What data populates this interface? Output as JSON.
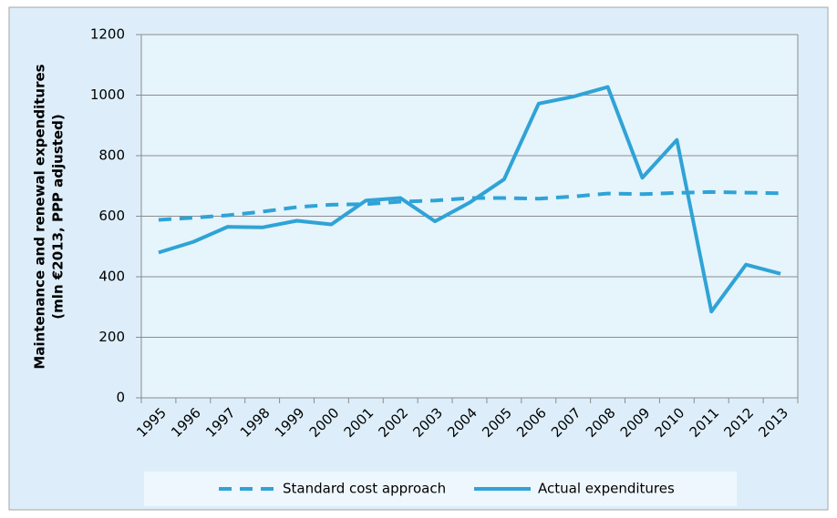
{
  "chart_data": {
    "type": "line",
    "y_label": [
      "Maintenance and renewal expenditures",
      "(mln €2013, PPP adjusted)"
    ],
    "categories": [
      "1995",
      "1996",
      "1997",
      "1998",
      "1999",
      "2000",
      "2001",
      "2002",
      "2003",
      "2004",
      "2005",
      "2006",
      "2007",
      "2008",
      "2009",
      "2010",
      "2011",
      "2012",
      "2013"
    ],
    "series": [
      {
        "name": "Standard cost approach",
        "color": "#2fa3d6",
        "dashed": true,
        "values": [
          588,
          595,
          603,
          615,
          630,
          638,
          640,
          648,
          652,
          660,
          660,
          658,
          665,
          675,
          673,
          677,
          680,
          678,
          676
        ]
      },
      {
        "name": "Actual expenditures",
        "color": "#2fa3d6",
        "dashed": false,
        "values": [
          480,
          515,
          565,
          563,
          585,
          573,
          652,
          660,
          583,
          645,
          722,
          972,
          995,
          1027,
          727,
          852,
          285,
          440,
          410
        ]
      }
    ],
    "ylim": [
      0,
      1200
    ],
    "yticks": [
      0,
      200,
      400,
      600,
      800,
      1000,
      1200
    ],
    "grid": true,
    "legend": "bottom"
  }
}
